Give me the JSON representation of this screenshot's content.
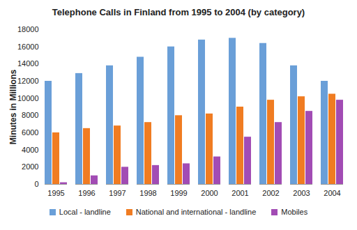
{
  "chart_data": {
    "type": "bar",
    "title": "Telephone Calls in Finland from 1995 to 2004 (by category)",
    "y_label": "Minutes in Millions",
    "categories": [
      "1995",
      "1996",
      "1997",
      "1998",
      "1999",
      "2000",
      "2001",
      "2002",
      "2003",
      "2004"
    ],
    "series": [
      {
        "name": "Local - landline",
        "color": "#6a9fd8",
        "values": [
          12000,
          12900,
          13800,
          14800,
          16000,
          16800,
          17000,
          16400,
          13800,
          12000
        ]
      },
      {
        "name": "National and international - landline",
        "color": "#f07c22",
        "values": [
          6000,
          6500,
          6800,
          7200,
          8000,
          8200,
          9000,
          9800,
          10200,
          10500
        ]
      },
      {
        "name": "Mobiles",
        "color": "#a24cb4",
        "values": [
          200,
          1000,
          2000,
          2200,
          2400,
          3200,
          5500,
          7200,
          8500,
          9800
        ]
      }
    ],
    "ylim": [
      0,
      18000
    ],
    "yticks": [
      0,
      2000,
      4000,
      6000,
      8000,
      10000,
      12000,
      14000,
      16000,
      18000
    ],
    "grid": false,
    "legend": "bottom"
  }
}
